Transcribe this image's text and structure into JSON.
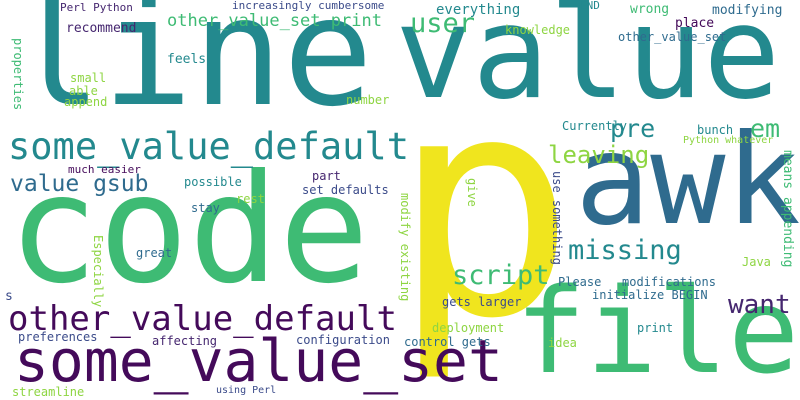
{
  "colors": {
    "background": "#ffffff",
    "yellow": "#f0e51e",
    "green": "#3ebb74",
    "lime": "#8ed542",
    "teal": "#23898e",
    "blue": "#2f6b8e",
    "navy": "#3b4b8a",
    "purple": "#440a5a",
    "violet": "#45266f"
  },
  "words": [
    "line",
    "value",
    "p",
    "code",
    "awk",
    "file",
    "some_value_set",
    "some_value_default",
    "other_value_default",
    "script",
    "missing",
    "leaving",
    "want",
    "value gsub",
    "user",
    "pre",
    "em",
    "other_value_set print",
    "everything",
    "wrong",
    "modifying",
    "END",
    "Perl Python",
    "increasingly cumbersome",
    "recommend",
    "knowledge",
    "place",
    "other_value_set",
    "feels",
    "properties",
    "small",
    "able",
    "append",
    "number",
    "Currently",
    "bunch",
    "Python whatever",
    "means appending",
    "much easier",
    "possible",
    "rest",
    "stay",
    "part",
    "set defaults",
    "give",
    "use something",
    "modify existing",
    "Java",
    "great",
    "Especially",
    "Please",
    "modifications",
    "initialize BEGIN",
    "gets larger",
    "deployment",
    "print",
    "s",
    "preferences",
    "affecting",
    "configuration",
    "control gets",
    "idea",
    "streamline",
    "using Perl"
  ]
}
